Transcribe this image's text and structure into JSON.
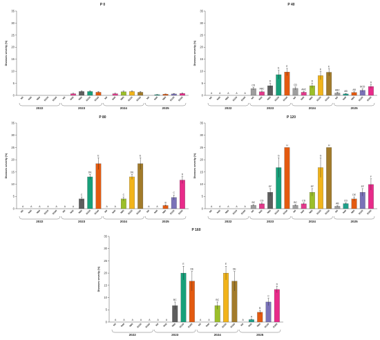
{
  "colors": {
    "N0": "#9e9e9e",
    "N40": "#e33a8c",
    "N80": "#5e5e5e",
    "N120": "#17a07a",
    "N160": "#e35a10",
    "y2023": [
      "#9e9e9e",
      "#e33a8c",
      "#5e5e5e",
      "#17a07a",
      "#e35a10"
    ],
    "y2024": [
      "#9e9e9e",
      "#e33a8c",
      "#9cbf2a",
      "#f2b41a",
      "#a27b2a"
    ],
    "y2025": [
      "#9e9e9e",
      "#1fa08a",
      "#e35a10",
      "#7a72b8",
      "#e82b8a"
    ]
  },
  "chart_data": [
    {
      "type": "bar",
      "title": "P 0",
      "ylabel": "Diseases severity (%)",
      "ylim": [
        0,
        35
      ],
      "yticks": [
        0,
        5,
        10,
        15,
        20,
        25,
        30,
        35
      ],
      "groups": [
        "2022",
        "2023",
        "2024",
        "2025"
      ],
      "categories": [
        "N0",
        "N40",
        "N80",
        "N120",
        "N160"
      ],
      "series": [
        {
          "group": "2022",
          "values": [
            0,
            0,
            0,
            0,
            0
          ],
          "errors": [
            0,
            0,
            0,
            0,
            0
          ],
          "letters": [
            "",
            "",
            "",
            "",
            ""
          ]
        },
        {
          "group": "2023",
          "values": [
            0,
            0.7,
            1.6,
            1.6,
            1.3
          ],
          "errors": [
            0,
            0.2,
            0.3,
            0.3,
            0.3
          ],
          "letters": [
            "",
            "",
            "",
            "",
            ""
          ]
        },
        {
          "group": "2024",
          "values": [
            0,
            0.7,
            1.5,
            1.6,
            1.3
          ],
          "errors": [
            0,
            0.2,
            0.3,
            0.3,
            0.3
          ],
          "letters": [
            "",
            "",
            "",
            "",
            ""
          ]
        },
        {
          "group": "2025",
          "values": [
            0,
            0.3,
            0.5,
            0.6,
            0.8
          ],
          "errors": [
            0,
            0.1,
            0.1,
            0.2,
            0.2
          ],
          "letters": [
            "",
            "",
            "",
            "",
            ""
          ]
        }
      ]
    },
    {
      "type": "bar",
      "title": "P 40",
      "ylabel": "Diseases severity (%)",
      "ylim": [
        0,
        35
      ],
      "yticks": [
        0,
        5,
        10,
        15,
        20,
        25,
        30,
        35
      ],
      "groups": [
        "2022",
        "2023",
        "2024",
        "2025"
      ],
      "categories": [
        "N0",
        "N40",
        "N80",
        "N120",
        "N160"
      ],
      "series": [
        {
          "group": "2022",
          "values": [
            0,
            0,
            0,
            0,
            0
          ],
          "errors": [
            0,
            0,
            0,
            0,
            0
          ],
          "letters": [
            "A",
            "A",
            "A",
            "A",
            "A"
          ]
        },
        {
          "group": "2023",
          "values": [
            2.8,
            1.5,
            4.0,
            8.6,
            9.7
          ],
          "errors": [
            0.5,
            0.3,
            1.0,
            1.8,
            1.5
          ],
          "letters": [
            "CD",
            "ABC",
            "D",
            "E",
            "E"
          ]
        },
        {
          "group": "2024",
          "values": [
            2.9,
            1.3,
            4.0,
            8.2,
            9.6
          ],
          "errors": [
            0.6,
            0.3,
            1.0,
            1.7,
            1.5
          ],
          "letters": [
            "CD",
            "ABC",
            "D",
            "E",
            "E"
          ]
        },
        {
          "group": "2025",
          "values": [
            1.0,
            0.6,
            1.2,
            2.1,
            3.7
          ],
          "errors": [
            0.3,
            0.2,
            0.3,
            0.6,
            0.8
          ],
          "letters": [
            "ABC",
            "AB",
            "AB",
            "BCD",
            "D"
          ]
        }
      ]
    },
    {
      "type": "bar",
      "title": "P 80",
      "ylabel": "Diseases severity (%)",
      "ylim": [
        0,
        35
      ],
      "yticks": [
        0,
        5,
        10,
        15,
        20,
        25,
        30,
        35
      ],
      "groups": [
        "2022",
        "2023",
        "2024",
        "2025"
      ],
      "categories": [
        "N0",
        "N40",
        "N80",
        "N120",
        "N160"
      ],
      "series": [
        {
          "group": "2022",
          "values": [
            0,
            0,
            0,
            0,
            0
          ],
          "errors": [
            0,
            0,
            0,
            0,
            0
          ],
          "letters": [
            "A",
            "A",
            "A",
            "A",
            "A"
          ]
        },
        {
          "group": "2023",
          "values": [
            0,
            0,
            4.0,
            13.0,
            18.4
          ],
          "errors": [
            0,
            0,
            0.8,
            1.0,
            2.4
          ],
          "letters": [
            "A",
            "A",
            "C",
            "DE",
            "E"
          ]
        },
        {
          "group": "2024",
          "values": [
            0,
            0,
            4.0,
            13.0,
            18.4
          ],
          "errors": [
            0,
            0,
            0.8,
            1.0,
            2.4
          ],
          "letters": [
            "A",
            "A",
            "C",
            "DE",
            "E"
          ]
        },
        {
          "group": "2025",
          "values": [
            0,
            0,
            1.3,
            4.6,
            11.7
          ],
          "errors": [
            0,
            0,
            0.3,
            1.0,
            1.4
          ],
          "letters": [
            "A",
            "A",
            "B",
            "C",
            "D"
          ]
        }
      ]
    },
    {
      "type": "bar",
      "title": "P 120",
      "ylabel": "Diseases severity (%)",
      "ylim": [
        0,
        35
      ],
      "yticks": [
        0,
        5,
        10,
        15,
        20,
        25,
        30,
        35
      ],
      "groups": [
        "2022",
        "2023",
        "2024",
        "2025"
      ],
      "categories": [
        "N0",
        "N40",
        "N80",
        "N120",
        "N160"
      ],
      "series": [
        {
          "group": "2022",
          "values": [
            0,
            0,
            0,
            0,
            0
          ],
          "errors": [
            0,
            0,
            0,
            0,
            0
          ],
          "letters": [
            "A",
            "A",
            "A",
            "A",
            "A"
          ]
        },
        {
          "group": "2023",
          "values": [
            1.4,
            2.0,
            6.7,
            16.8,
            25.0
          ],
          "errors": [
            0.3,
            0.4,
            1.5,
            4.0,
            0
          ],
          "letters": [
            "BC",
            "CD",
            "EF",
            "G",
            "H"
          ]
        },
        {
          "group": "2024",
          "values": [
            1.4,
            2.0,
            6.7,
            16.8,
            25.0
          ],
          "errors": [
            0.3,
            0.4,
            1.5,
            4.0,
            0
          ],
          "letters": [
            "BC",
            "CD",
            "EF",
            "G",
            "H"
          ]
        },
        {
          "group": "2025",
          "values": [
            1.0,
            2.1,
            4.0,
            6.7,
            9.9
          ],
          "errors": [
            0.2,
            0.3,
            0.8,
            1.5,
            2.3
          ],
          "letters": [
            "AB",
            "CD",
            "DE",
            "EF",
            "F"
          ]
        }
      ]
    },
    {
      "type": "bar",
      "title": "P 160",
      "ylabel": "Diseases severity (%)",
      "ylim": [
        0,
        35
      ],
      "yticks": [
        0,
        5,
        10,
        15,
        20,
        25,
        30,
        35
      ],
      "groups": [
        "2022",
        "2023",
        "2024",
        "2025"
      ],
      "categories": [
        "N0",
        "N40",
        "N80",
        "N120",
        "N160"
      ],
      "series": [
        {
          "group": "2022",
          "values": [
            0,
            0,
            0,
            0,
            0
          ],
          "errors": [
            0,
            0,
            0,
            0,
            0
          ],
          "letters": [
            "A",
            "A",
            "A",
            "A",
            "A"
          ]
        },
        {
          "group": "2023",
          "values": [
            0,
            0,
            6.7,
            20.0,
            16.7
          ],
          "errors": [
            0,
            0,
            1.5,
            2.8,
            4.0
          ],
          "letters": [
            "A",
            "A",
            "BC",
            "E",
            "DE"
          ]
        },
        {
          "group": "2024",
          "values": [
            0,
            0,
            6.7,
            20.0,
            16.7
          ],
          "errors": [
            0,
            0,
            1.5,
            2.8,
            4.0
          ],
          "letters": [
            "A",
            "A",
            "BC",
            "E",
            "DE"
          ]
        },
        {
          "group": "2025",
          "values": [
            0,
            1.0,
            4.0,
            8.2,
            13.3
          ],
          "errors": [
            0,
            0.2,
            0.8,
            1.5,
            1.3
          ],
          "letters": [
            "A",
            "A",
            "B",
            "C",
            "D"
          ]
        }
      ]
    }
  ]
}
